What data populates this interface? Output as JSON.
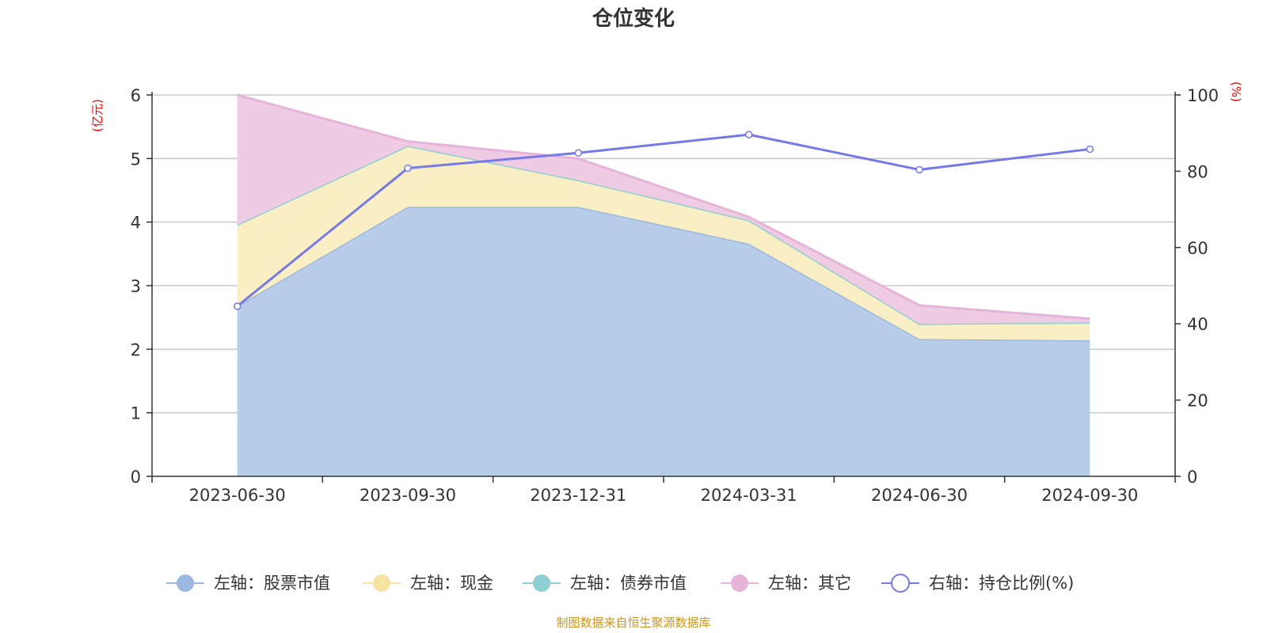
{
  "chart_data": {
    "type": "area",
    "title": "仓位变化",
    "categories": [
      "2023-06-30",
      "2023-09-30",
      "2023-12-31",
      "2024-03-31",
      "2024-06-30",
      "2024-09-30"
    ],
    "left_axis": {
      "unit": "(亿元)",
      "min": 0,
      "max": 6,
      "ticks": [
        "0",
        "1",
        "2",
        "3",
        "4",
        "5",
        "6"
      ]
    },
    "right_axis": {
      "unit": "(%)",
      "min": 0,
      "max": 100,
      "ticks": [
        "0",
        "20",
        "40",
        "60",
        "80",
        "100"
      ]
    },
    "stacked_series": [
      {
        "name": "左轴：股票市值",
        "color": "#9ab8e0",
        "fill": "#b8cde9",
        "values": [
          2.68,
          4.24,
          4.24,
          3.66,
          2.16,
          2.14
        ]
      },
      {
        "name": "左轴：现金",
        "color": "#f7e3a1",
        "fill": "#faefc4",
        "values": [
          1.28,
          0.96,
          0.42,
          0.37,
          0.24,
          0.28
        ]
      },
      {
        "name": "左轴：债券市值",
        "color": "#8ed0d2",
        "fill": "#b6e2e3",
        "values": [
          0,
          0,
          0,
          0,
          0,
          0
        ]
      },
      {
        "name": "左轴：其它",
        "color": "#e6b3d9",
        "fill": "#efcbe4",
        "values": [
          2.04,
          0.07,
          0.34,
          0.05,
          0.29,
          0.06
        ]
      }
    ],
    "line_series": {
      "name": "右轴：持仓比例(%)",
      "color": "#7579e8",
      "values": [
        44.6,
        80.8,
        84.8,
        89.6,
        80.4,
        85.8
      ]
    },
    "grid": true,
    "legend_position": "bottom"
  },
  "source_note": "制图数据来自恒生聚源数据库"
}
